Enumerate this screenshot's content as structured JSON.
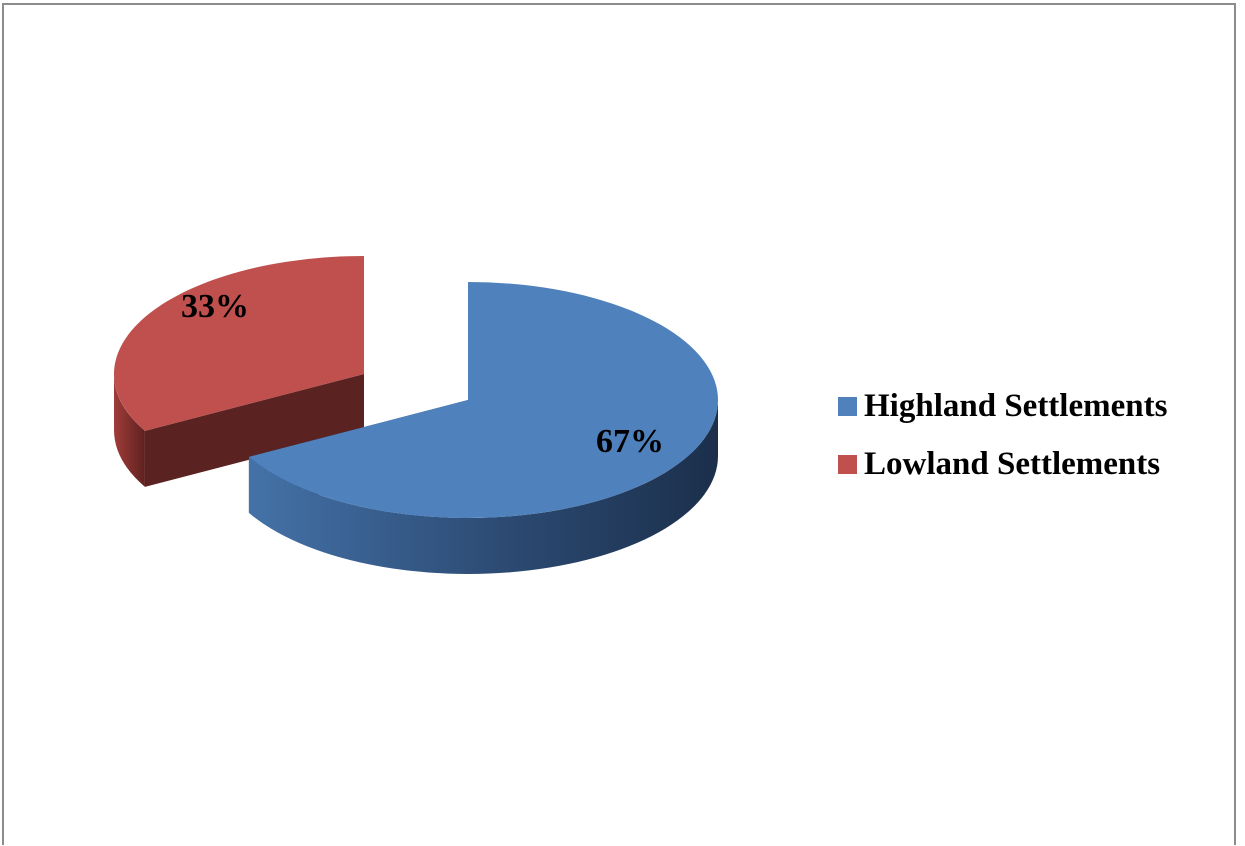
{
  "chart_data": {
    "type": "pie",
    "title": "",
    "slices": [
      {
        "label": "Highland Settlements",
        "value": 67,
        "display": "67%",
        "color": "#4f81bd"
      },
      {
        "label": "Lowland Settlements",
        "value": 33,
        "display": "33%",
        "color": "#c0504d"
      }
    ],
    "style": "3d-exploded",
    "legend_position": "right"
  },
  "legend": {
    "items": [
      {
        "label": "Highland Settlements",
        "color": "#4f81bd"
      },
      {
        "label": "Lowland Settlements",
        "color": "#c0504d"
      }
    ]
  }
}
